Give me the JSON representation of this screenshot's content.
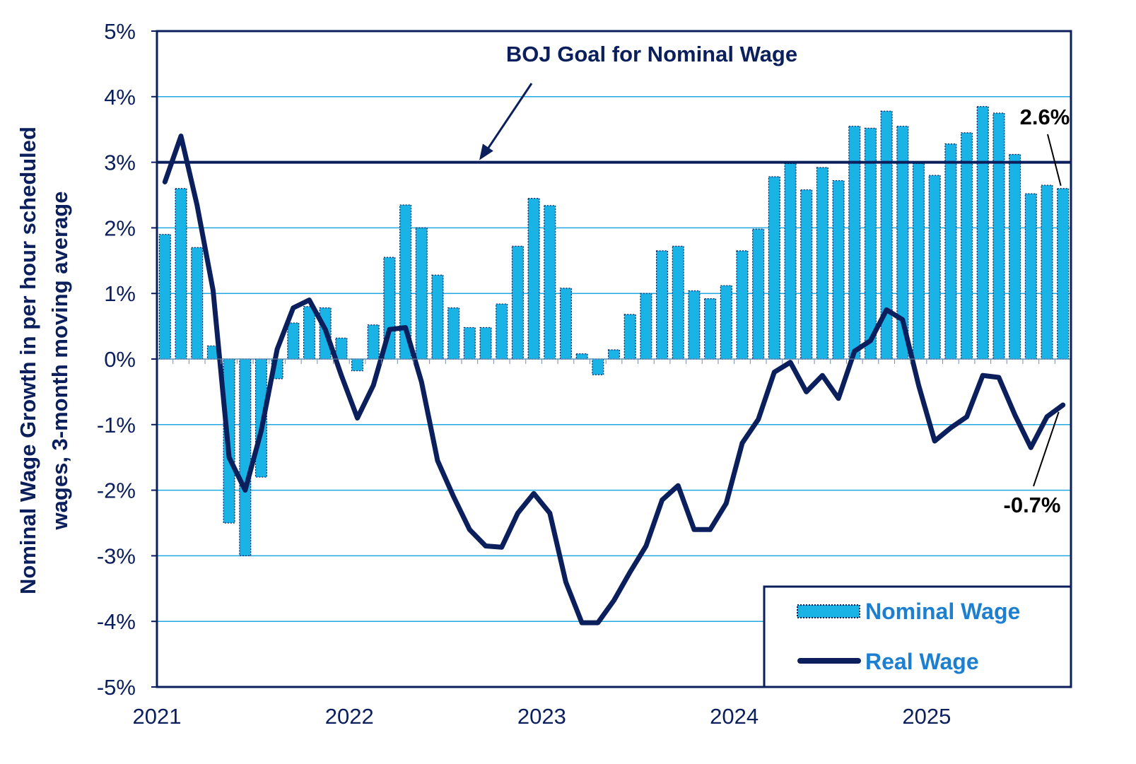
{
  "chart_data": {
    "type": "bar",
    "title": "",
    "ylabel_lines": [
      "Nominal Wage Growth in per hour scheduled",
      "wages, 3-month moving average"
    ],
    "xlabel": "",
    "ylim": [
      -5,
      5
    ],
    "yticks": [
      "-5%",
      "-4%",
      "-3%",
      "-2%",
      "-1%",
      "0%",
      "1%",
      "2%",
      "3%",
      "4%",
      "5%"
    ],
    "ytick_values": [
      -5,
      -4,
      -3,
      -2,
      -1,
      0,
      1,
      2,
      3,
      4,
      5
    ],
    "xticks": [
      "2021",
      "2022",
      "2023",
      "2024",
      "2025"
    ],
    "xtick_index": [
      0,
      12,
      24,
      36,
      48
    ],
    "grid": true,
    "legend_position": "bottom-right",
    "months": 57,
    "series": [
      {
        "name": "Nominal Wage",
        "kind": "bar",
        "color": "#19b3e6",
        "values": [
          1.9,
          2.6,
          1.7,
          0.2,
          -2.5,
          -3.0,
          -1.8,
          -0.3,
          0.55,
          0.8,
          0.78,
          0.32,
          -0.18,
          0.52,
          1.55,
          2.35,
          2.0,
          1.28,
          0.78,
          0.48,
          0.48,
          0.84,
          1.72,
          2.45,
          2.34,
          1.08,
          0.08,
          -0.24,
          0.14,
          0.68,
          1.0,
          1.65,
          1.72,
          1.04,
          0.92,
          1.12,
          1.65,
          1.98,
          2.78,
          2.98,
          2.58,
          2.92,
          2.72,
          3.55,
          3.52,
          3.78,
          3.55,
          2.98,
          2.8,
          3.28,
          3.45,
          3.85,
          3.75,
          3.12,
          2.52,
          2.65,
          2.6
        ]
      },
      {
        "name": "Real Wage",
        "kind": "line",
        "color": "#0a1f5c",
        "values": [
          2.7,
          3.4,
          2.35,
          1.05,
          -1.5,
          -2.0,
          -1.1,
          0.15,
          0.78,
          0.9,
          0.45,
          -0.25,
          -0.9,
          -0.4,
          0.45,
          0.48,
          -0.35,
          -1.55,
          -2.1,
          -2.6,
          -2.85,
          -2.87,
          -2.35,
          -2.05,
          -2.35,
          -3.4,
          -4.02,
          -4.02,
          -3.68,
          -3.25,
          -2.85,
          -2.15,
          -1.93,
          -2.6,
          -2.6,
          -2.2,
          -1.28,
          -0.92,
          -0.2,
          -0.05,
          -0.5,
          -0.25,
          -0.6,
          0.12,
          0.28,
          0.75,
          0.6,
          -0.4,
          -1.25,
          -1.05,
          -0.88,
          -0.25,
          -0.28,
          -0.85,
          -1.35,
          -0.88,
          -0.7
        ]
      }
    ],
    "reference_line": {
      "label": "BOJ Goal for Nominal Wage",
      "value": 3.0
    },
    "annotations": [
      {
        "text": "2.6%",
        "series": "Nominal Wage",
        "index": 56
      },
      {
        "text": "-0.7%",
        "series": "Real Wage",
        "index": 56
      }
    ]
  }
}
